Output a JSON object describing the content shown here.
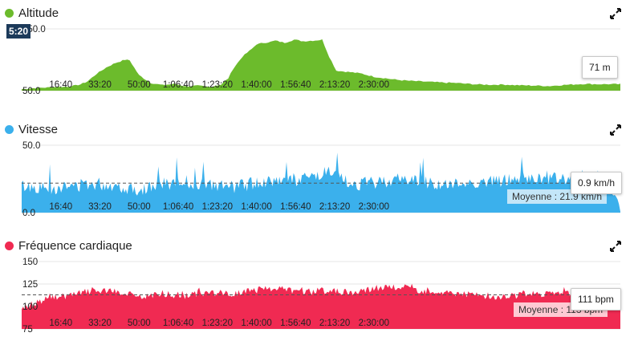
{
  "expand_icon": "expand-arrows-icon",
  "cursor_label": "5:20",
  "x_ticks": [
    "16:40",
    "33:20",
    "50:00",
    "1:06:40",
    "1:23:20",
    "1:40:00",
    "1:56:40",
    "2:13:20",
    "2:30:00"
  ],
  "charts": {
    "altitude": {
      "title": "Altitude",
      "color": "#6cbb2c",
      "y_ticks": [
        "250.0",
        "50.0"
      ],
      "tooltip": "71 m"
    },
    "speed": {
      "title": "Vitesse",
      "color": "#3bb0ec",
      "y_ticks": [
        "50.0",
        "0.0"
      ],
      "tooltip": "0.9 km/h",
      "average_label": "Moyenne : 21.9 km/h"
    },
    "heart": {
      "title": "Fréquence cardiaque",
      "color": "#f02a52",
      "y_ticks": [
        "150",
        "125",
        "100",
        "75"
      ],
      "tooltip": "111 bpm",
      "average_label": "Moyenne : 113 bpm"
    }
  },
  "chart_data": [
    {
      "type": "area",
      "title": "Altitude",
      "ylim": [
        50,
        250
      ],
      "x_unit": "minutes",
      "x": [
        0,
        5,
        10,
        15,
        20,
        25,
        28,
        32,
        36,
        40,
        44,
        46,
        50,
        55,
        60,
        65,
        70,
        75,
        80,
        85,
        88,
        90,
        94,
        98,
        100,
        103,
        106,
        108,
        112,
        116,
        120,
        124,
        128,
        131,
        134,
        140,
        145,
        150,
        155,
        160,
        165,
        170,
        175,
        180,
        185,
        190,
        195,
        200,
        205,
        210,
        215,
        220,
        225,
        230,
        235,
        240,
        245,
        250,
        255
      ],
      "values": [
        55,
        58,
        60,
        62,
        63,
        70,
        80,
        105,
        125,
        140,
        150,
        148,
        100,
        75,
        68,
        72,
        64,
        66,
        62,
        70,
        90,
        120,
        160,
        185,
        200,
        205,
        208,
        212,
        205,
        215,
        210,
        212,
        215,
        160,
        115,
        110,
        105,
        95,
        90,
        85,
        82,
        80,
        78,
        76,
        75,
        72,
        70,
        69,
        70,
        68,
        67,
        66,
        65,
        68,
        70,
        72,
        71,
        71,
        71
      ]
    },
    {
      "type": "area",
      "title": "Vitesse",
      "ylim": [
        0,
        50
      ],
      "x_unit": "minutes",
      "average": 21.9,
      "x": [
        0,
        10,
        20,
        30,
        40,
        50,
        60,
        70,
        80,
        90,
        100,
        110,
        120,
        130,
        140,
        150,
        160,
        170,
        180,
        190,
        200,
        210,
        220,
        230,
        240,
        250,
        255
      ],
      "values": [
        20,
        18,
        19,
        22,
        20,
        17,
        21,
        23,
        20,
        19,
        22,
        25,
        24,
        30,
        21,
        22,
        25,
        24,
        20,
        22,
        23,
        25,
        25,
        25,
        25,
        25,
        1
      ]
    },
    {
      "type": "area",
      "title": "Fréquence cardiaque",
      "ylim": [
        75,
        150
      ],
      "x_unit": "minutes",
      "average": 113,
      "x": [
        0,
        10,
        20,
        30,
        40,
        50,
        60,
        70,
        80,
        90,
        100,
        110,
        120,
        130,
        140,
        150,
        160,
        170,
        180,
        190,
        200,
        210,
        220,
        230,
        240,
        250,
        255
      ],
      "values": [
        98,
        108,
        112,
        118,
        116,
        110,
        114,
        112,
        116,
        114,
        118,
        120,
        116,
        118,
        115,
        120,
        122,
        118,
        116,
        114,
        110,
        112,
        114,
        116,
        114,
        112,
        111
      ]
    }
  ]
}
